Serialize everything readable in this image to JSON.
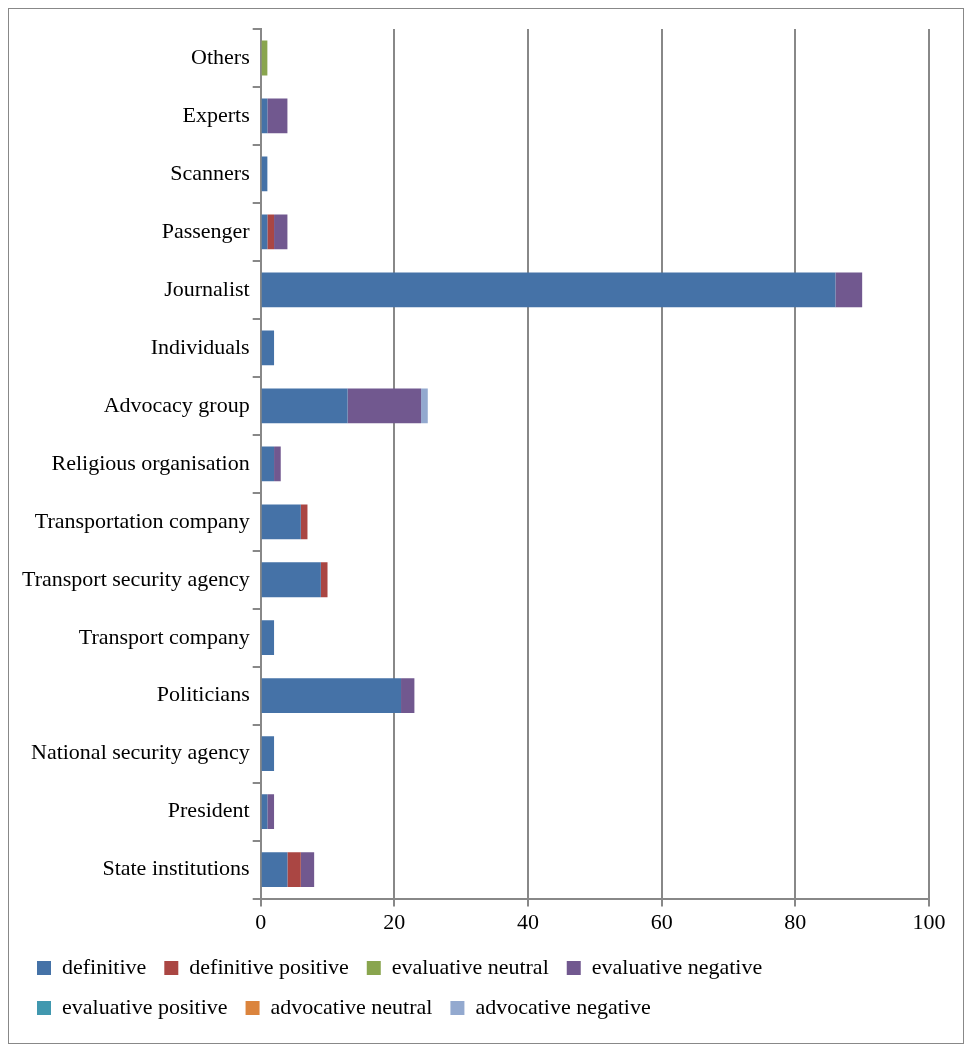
{
  "chart_data": {
    "type": "bar",
    "orientation": "horizontal",
    "stacked": true,
    "categories": [
      "Others",
      "Experts",
      "Scanners",
      "Passenger",
      "Journalist",
      "Individuals",
      "Advocacy group",
      "Religious organisation",
      "Transportation company",
      "Transport security agency",
      "Transport company",
      "Politicians",
      "National security agency",
      "President",
      "State institutions"
    ],
    "series": [
      {
        "name": "definitive",
        "color": "#4572a7",
        "values": [
          0,
          1,
          1,
          1,
          86,
          2,
          13,
          2,
          6,
          9,
          2,
          21,
          2,
          1,
          4
        ]
      },
      {
        "name": "definitive positive",
        "color": "#aa4643",
        "values": [
          0,
          0,
          0,
          1,
          0,
          0,
          0,
          0,
          1,
          1,
          0,
          0,
          0,
          0,
          2
        ]
      },
      {
        "name": "evaluative neutral",
        "color": "#89a54e",
        "values": [
          1,
          0,
          0,
          0,
          0,
          0,
          0,
          0,
          0,
          0,
          0,
          0,
          0,
          0,
          0
        ]
      },
      {
        "name": "evaluative negative",
        "color": "#71588f",
        "values": [
          0,
          3,
          0,
          2,
          4,
          0,
          11,
          1,
          0,
          0,
          0,
          2,
          0,
          1,
          2
        ]
      },
      {
        "name": "evaluative positive",
        "color": "#4198af",
        "values": [
          0,
          0,
          0,
          0,
          0,
          0,
          0,
          0,
          0,
          0,
          0,
          0,
          0,
          0,
          0
        ]
      },
      {
        "name": "advocative neutral",
        "color": "#db843d",
        "values": [
          0,
          0,
          0,
          0,
          0,
          0,
          0,
          0,
          0,
          0,
          0,
          0,
          0,
          0,
          0
        ]
      },
      {
        "name": "advocative negative",
        "color": "#93a9cf",
        "values": [
          0,
          0,
          0,
          0,
          0,
          0,
          1,
          0,
          0,
          0,
          0,
          0,
          0,
          0,
          0
        ]
      }
    ],
    "xlim": [
      0,
      100
    ],
    "xticks": [
      0,
      20,
      40,
      60,
      80,
      100
    ],
    "grid": "x",
    "legend": "bottom"
  }
}
